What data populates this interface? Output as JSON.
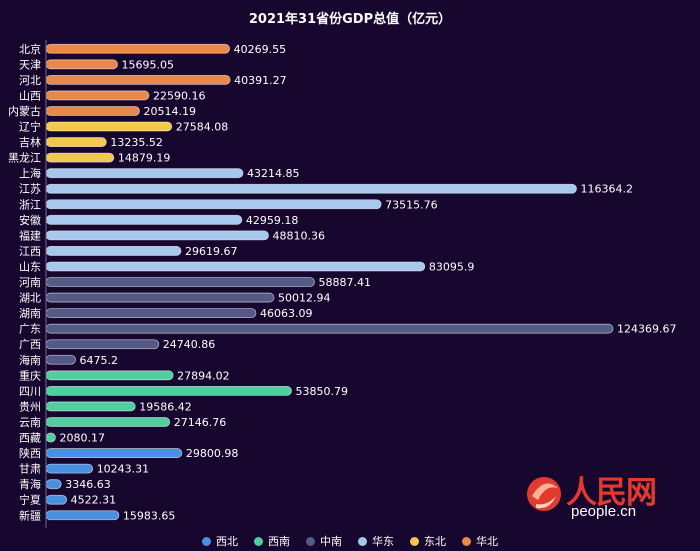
{
  "chart_data": {
    "type": "bar",
    "orientation": "horizontal",
    "title": "2021年31省份GDP总值（亿元）",
    "categories": [
      "北京",
      "天津",
      "河北",
      "山西",
      "内蒙古",
      "辽宁",
      "吉林",
      "黑龙江",
      "上海",
      "江苏",
      "浙江",
      "安徽",
      "福建",
      "江西",
      "山东",
      "河南",
      "湖北",
      "湖南",
      "广东",
      "广西",
      "海南",
      "重庆",
      "四川",
      "贵州",
      "云南",
      "西藏",
      "陕西",
      "甘肃",
      "青海",
      "宁夏",
      "新疆"
    ],
    "values": [
      40269.55,
      15695.05,
      40391.27,
      22590.16,
      20514.19,
      27584.08,
      13235.52,
      14879.19,
      43214.85,
      116364.2,
      73515.76,
      42959.18,
      48810.36,
      29619.67,
      83095.9,
      58887.41,
      50012.94,
      46063.09,
      124369.67,
      24740.86,
      6475.2,
      27894.02,
      53850.79,
      19586.42,
      27146.76,
      2080.17,
      29800.98,
      10243.31,
      3346.63,
      4522.31,
      15983.65
    ],
    "value_labels": [
      "40269.55",
      "15695.05",
      "40391.27",
      "22590.16",
      "20514.19",
      "27584.08",
      "13235.52",
      "14879.19",
      "43214.85",
      "116364.2",
      "73515.76",
      "42959.18",
      "48810.36",
      "29619.67",
      "83095.9",
      "58887.41",
      "50012.94",
      "46063.09",
      "124369.67",
      "24740.86",
      "6475.2",
      "27894.02",
      "53850.79",
      "19586.42",
      "27146.76",
      "2080.17",
      "29800.98",
      "10243.31",
      "3346.63",
      "4522.31",
      "15983.65"
    ],
    "groups": [
      "华北",
      "华北",
      "华北",
      "华北",
      "华北",
      "东北",
      "东北",
      "东北",
      "华东",
      "华东",
      "华东",
      "华东",
      "华东",
      "华东",
      "华东",
      "中南",
      "中南",
      "中南",
      "中南",
      "中南",
      "中南",
      "西南",
      "西南",
      "西南",
      "西南",
      "西南",
      "西北",
      "西北",
      "西北",
      "西北",
      "西北"
    ],
    "legend": [
      {
        "name": "西北",
        "color": "#4a90e2"
      },
      {
        "name": "西南",
        "color": "#4fcf9e"
      },
      {
        "name": "中南",
        "color": "#545a86"
      },
      {
        "name": "华东",
        "color": "#a6c8ec"
      },
      {
        "name": "东北",
        "color": "#f2c94c"
      },
      {
        "name": "华北",
        "color": "#e8884a"
      }
    ],
    "legend_position": "bottom",
    "grid": false
  },
  "watermark": {
    "brand": "人民网",
    "url": "people.cn"
  }
}
